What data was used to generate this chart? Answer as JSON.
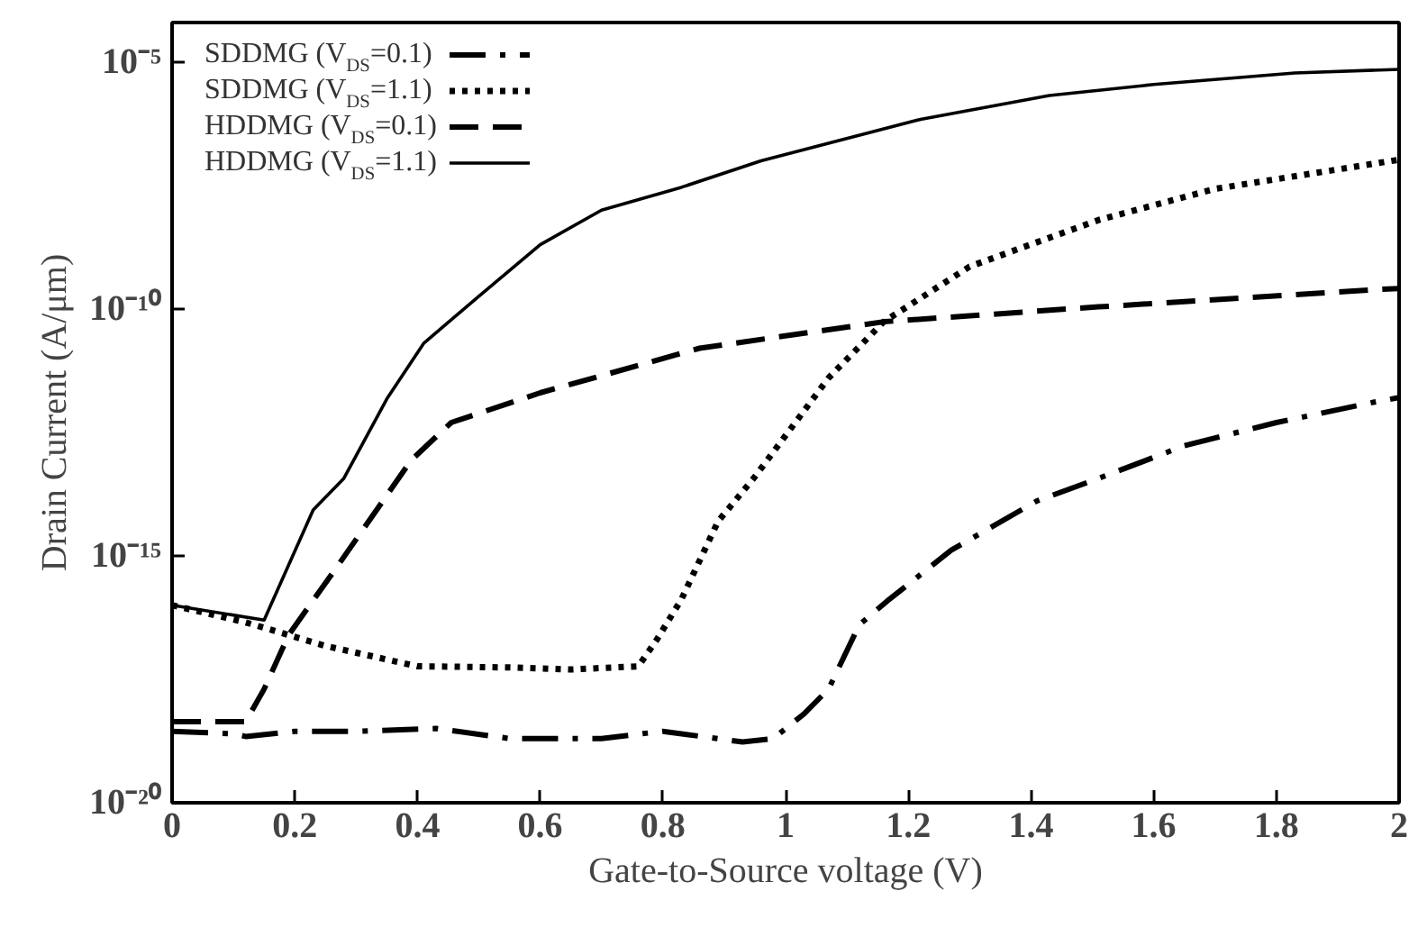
{
  "chart_data": {
    "type": "line",
    "xlabel": "Gate-to-Source voltage (V)",
    "ylabel": "Drain Current (A/μm)",
    "log": "y",
    "grid": false,
    "legend": "top left",
    "marker": "none",
    "xlim": [
      0,
      2
    ],
    "xticks": [
      0,
      0.2,
      0.4,
      0.6,
      0.8,
      1,
      1.2,
      1.4,
      1.6,
      1.8,
      2
    ],
    "ylim": [
      1e-20,
      6.3e-05
    ],
    "yticks": [
      {
        "value": 1e-20,
        "label": "10⁻²⁰"
      },
      {
        "value": 1e-15,
        "label": "10⁻¹⁵"
      },
      {
        "value": 1e-10,
        "label": "10⁻¹⁰"
      },
      {
        "value": 1e-05,
        "label": "10⁻⁵"
      }
    ],
    "series": [
      {
        "name": "SDDMG (V$_{DS}$=0.1)",
        "color": "#000000",
        "line_style": "dashdot",
        "x": [
          0,
          0.1,
          0.12,
          0.2,
          0.3,
          0.43,
          0.55,
          0.7,
          0.8,
          0.93,
          0.98,
          1.03,
          1.07,
          1.12,
          1.165,
          1.27,
          1.41,
          1.51,
          1.65,
          1.8,
          1.96,
          2
        ],
        "values": [
          2.8e-19,
          2.5e-19,
          2.2e-19,
          2.8e-19,
          2.8e-19,
          3.2e-19,
          2e-19,
          2e-19,
          2.8e-19,
          1.7e-19,
          2e-19,
          6.3e-19,
          2e-18,
          4e-17,
          1.2e-16,
          1.3e-15,
          1.3e-14,
          3.7e-14,
          1.7e-13,
          5e-13,
          1.3e-12,
          1.6e-12
        ]
      },
      {
        "name": "SDDMG (V$_{DS}$=1.1)",
        "color": "#000000",
        "line_style": "dotted",
        "x": [
          0,
          0.12,
          0.25,
          0.4,
          0.55,
          0.65,
          0.76,
          0.79,
          0.83,
          0.89,
          0.95,
          1.07,
          1.16,
          1.3,
          1.51,
          1.7,
          2
        ],
        "values": [
          1e-16,
          4.5e-17,
          1.5e-17,
          5.8e-18,
          5.5e-18,
          5e-18,
          5.8e-18,
          2e-17,
          1.3e-16,
          5e-15,
          4e-14,
          4e-12,
          5.5e-11,
          7.2e-10,
          6.3e-09,
          2.7e-08,
          1.05e-07
        ]
      },
      {
        "name": "HDDMG (V$_{DS}$=0.1)",
        "color": "#000000",
        "line_style": "dashed",
        "x": [
          0,
          0.12,
          0.15,
          0.19,
          0.27,
          0.39,
          0.455,
          0.6,
          0.86,
          1.16,
          1.51,
          1.97,
          2
        ],
        "values": [
          4.4e-19,
          4.4e-19,
          2e-18,
          2.5e-17,
          6.3e-16,
          8.7e-14,
          5e-13,
          2e-12,
          1.6e-11,
          5.5e-11,
          1.1e-10,
          2.5e-10,
          2.6e-10
        ]
      },
      {
        "name": "HDDMG (V$_{DS}$=1.1)",
        "color": "#000000",
        "line_style": "solid",
        "x": [
          0,
          0.15,
          0.23,
          0.28,
          0.35,
          0.41,
          0.5,
          0.6,
          0.7,
          0.83,
          0.96,
          1.22,
          1.43,
          1.6,
          1.83,
          2
        ],
        "values": [
          1e-16,
          5e-17,
          8.5e-15,
          3.7e-14,
          1.5e-12,
          2e-11,
          1.8e-10,
          2e-09,
          1e-08,
          2.9e-08,
          1e-07,
          6.9e-07,
          2.1e-06,
          3.5e-06,
          6e-06,
          7.1e-06
        ]
      }
    ]
  }
}
